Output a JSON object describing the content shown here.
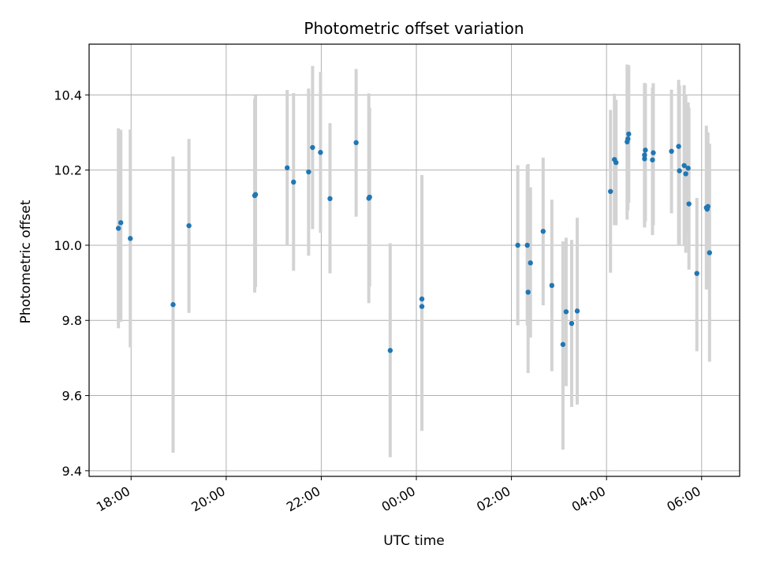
{
  "chart_data": {
    "type": "scatter",
    "title": "Photometric offset variation",
    "xlabel": "UTC time",
    "ylabel": "Photometric offset",
    "x_axis_type": "time",
    "xlim": [
      "17:07",
      "06:48"
    ],
    "ylim": [
      9.385,
      10.535
    ],
    "x_ticks": [
      "18:00",
      "20:00",
      "22:00",
      "00:00",
      "02:00",
      "04:00",
      "06:00"
    ],
    "y_ticks": [
      "9.4",
      "9.6",
      "9.8",
      "10.0",
      "10.2",
      "10.4"
    ],
    "grid": true,
    "legend": "none",
    "colors": {
      "points": "#1f77b4",
      "error_bars": "#d3d3d3",
      "grid": "#b0b0b0"
    },
    "series": [
      {
        "x": [
          "17:44",
          "17:47",
          "17:59",
          "18:53",
          "19:13",
          "20:36",
          "20:37",
          "21:17",
          "21:25",
          "21:44",
          "21:49",
          "21:59",
          "22:11",
          "22:44",
          "23:00",
          "23:01",
          "23:27",
          "00:07",
          "00:07",
          "02:08",
          "02:20",
          "02:21",
          "02:24",
          "02:40",
          "02:51",
          "03:05",
          "03:09",
          "03:16",
          "03:23",
          "04:05",
          "04:10",
          "04:12",
          "04:26",
          "04:27",
          "04:28",
          "04:48",
          "04:48",
          "04:49",
          "04:58",
          "04:59",
          "05:22",
          "05:31",
          "05:32",
          "05:38",
          "05:40",
          "05:43",
          "05:44",
          "05:54",
          "06:06",
          "06:07",
          "06:08",
          "06:10"
        ],
        "y": [
          10.045,
          10.06,
          10.018,
          9.842,
          10.052,
          10.132,
          10.135,
          10.206,
          10.168,
          10.195,
          10.26,
          10.247,
          10.124,
          10.273,
          10.125,
          10.128,
          9.72,
          9.837,
          9.857,
          10.0,
          10.0,
          9.875,
          9.953,
          10.037,
          9.893,
          9.736,
          9.823,
          9.792,
          9.825,
          10.143,
          10.228,
          10.22,
          10.275,
          10.283,
          10.296,
          10.23,
          10.24,
          10.253,
          10.227,
          10.246,
          10.25,
          10.263,
          10.198,
          10.212,
          10.19,
          10.205,
          10.11,
          9.925,
          10.1,
          10.096,
          10.103,
          9.98
        ],
        "yerr_low": [
          9.779,
          9.796,
          9.728,
          9.448,
          9.82,
          9.874,
          9.889,
          9.998,
          9.932,
          9.972,
          10.043,
          10.033,
          9.925,
          10.076,
          9.846,
          9.89,
          9.436,
          9.506,
          9.616,
          9.787,
          9.787,
          9.66,
          9.754,
          9.84,
          9.665,
          9.456,
          9.625,
          9.57,
          9.576,
          9.927,
          10.053,
          10.053,
          10.068,
          10.093,
          10.113,
          10.047,
          10.048,
          10.063,
          10.027,
          10.053,
          10.085,
          10.002,
          9.998,
          9.998,
          9.98,
          10.03,
          9.935,
          9.718,
          9.882,
          9.898,
          9.883,
          9.69
        ],
        "yerr_high": [
          10.311,
          10.307,
          10.308,
          10.236,
          10.283,
          10.39,
          10.398,
          10.413,
          10.405,
          10.417,
          10.477,
          10.461,
          10.325,
          10.469,
          10.404,
          10.366,
          10.005,
          10.187,
          10.097,
          10.213,
          10.213,
          10.216,
          10.154,
          10.233,
          10.121,
          10.01,
          10.02,
          10.014,
          10.073,
          10.36,
          10.403,
          10.387,
          10.481,
          10.473,
          10.479,
          10.427,
          10.432,
          10.43,
          10.42,
          10.431,
          10.414,
          10.44,
          10.425,
          10.426,
          10.4,
          10.38,
          10.366,
          10.126,
          10.318,
          10.294,
          10.3,
          10.27
        ]
      }
    ]
  }
}
